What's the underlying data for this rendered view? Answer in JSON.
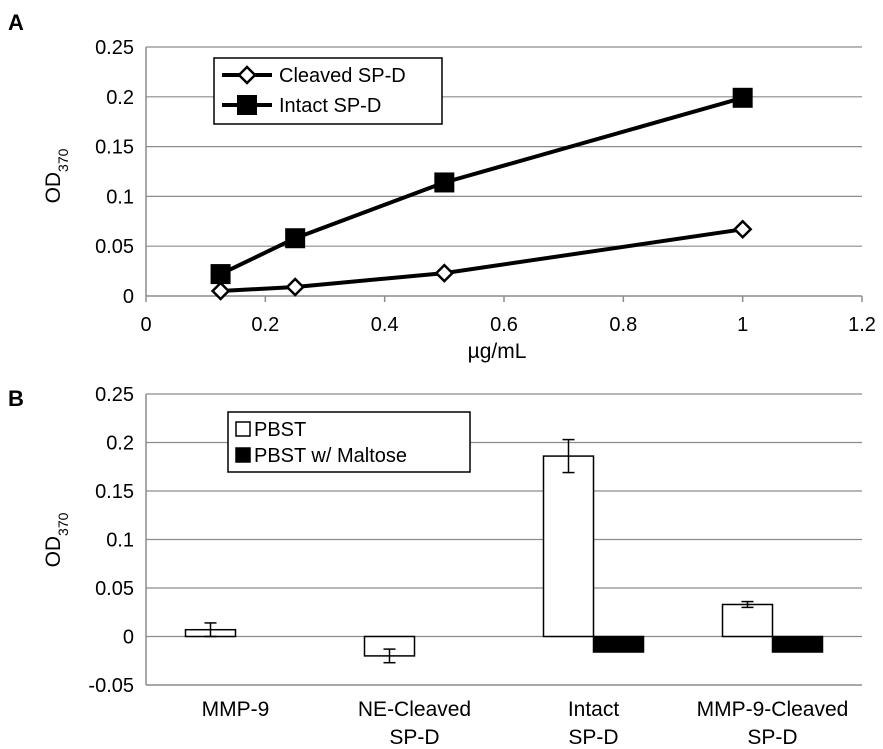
{
  "chart_data": [
    {
      "panel": "A",
      "type": "line",
      "xlabel": "µg/mL",
      "ylabel": "OD",
      "ylabel_sub": "370",
      "xlim": [
        0,
        1.2
      ],
      "ylim": [
        0,
        0.25
      ],
      "xticks": [
        "0",
        "0.2",
        "0.4",
        "0.6",
        "0.8",
        "1",
        "1.2"
      ],
      "yticks": [
        "0",
        "0.05",
        "0.1",
        "0.15",
        "0.2",
        "0.25"
      ],
      "grid": "horizontal",
      "legend": "top-left",
      "series": [
        {
          "name": "Cleaved SP-D",
          "marker": "open-diamond",
          "x": [
            0.125,
            0.25,
            0.5,
            1.0
          ],
          "y": [
            0.005,
            0.009,
            0.023,
            0.067
          ]
        },
        {
          "name": "Intact SP-D",
          "marker": "filled-square",
          "x": [
            0.125,
            0.25,
            0.5,
            1.0
          ],
          "y": [
            0.022,
            0.058,
            0.114,
            0.199
          ]
        }
      ]
    },
    {
      "panel": "B",
      "type": "bar",
      "ylabel": "OD",
      "ylabel_sub": "370",
      "ylim": [
        -0.05,
        0.25
      ],
      "yticks": [
        "-0.05",
        "0",
        "0.05",
        "0.1",
        "0.15",
        "0.2",
        "0.25"
      ],
      "grid": "horizontal",
      "legend": "top-left",
      "categories": [
        [
          "MMP-9"
        ],
        [
          "NE-Cleaved",
          "SP-D"
        ],
        [
          "Intact",
          "SP-D"
        ],
        [
          "MMP-9-Cleaved",
          "SP-D"
        ]
      ],
      "series": [
        {
          "name": "PBST",
          "fill": "#ffffff",
          "values": [
            0.007,
            -0.02,
            0.186,
            0.033
          ],
          "errors": [
            0.007,
            0.007,
            0.017,
            0.003
          ]
        },
        {
          "name": "PBST w/ Maltose",
          "fill": "#000000",
          "values": [
            null,
            null,
            -0.016,
            -0.016
          ],
          "errors": [
            null,
            null,
            null,
            null
          ]
        }
      ]
    }
  ]
}
